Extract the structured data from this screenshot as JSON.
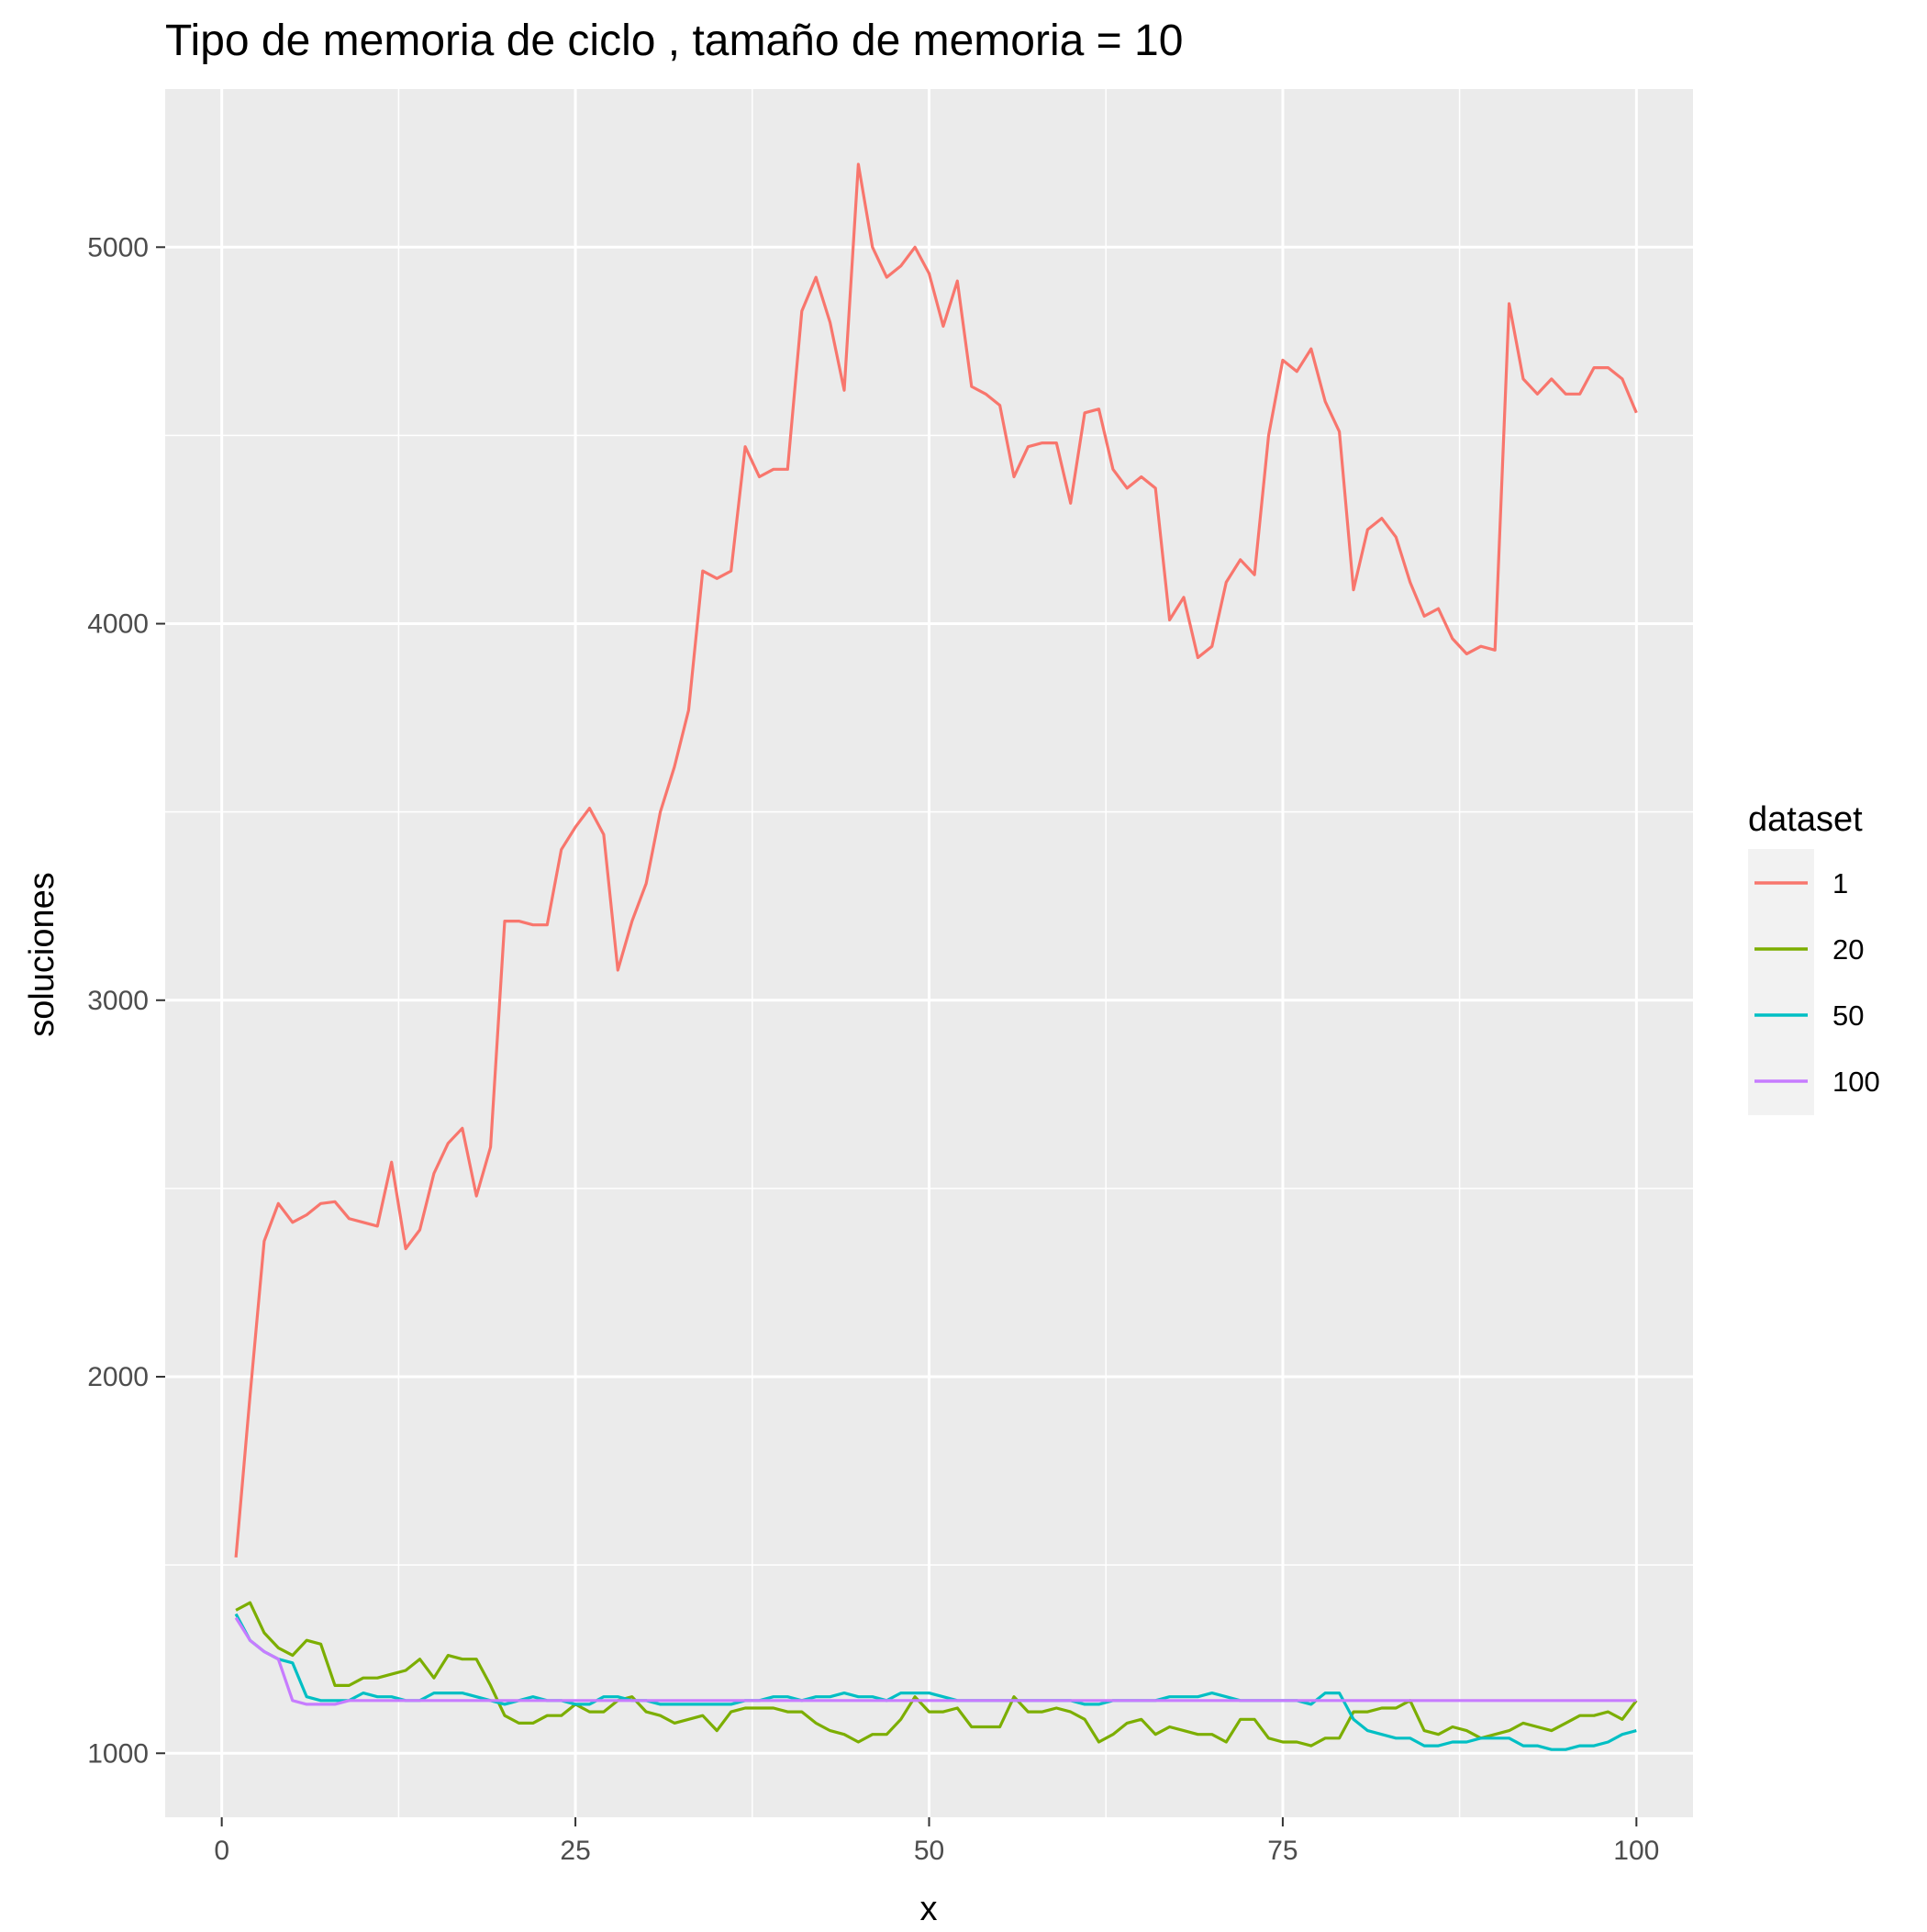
{
  "chart_data": {
    "type": "line",
    "title": "Tipo de memoria de ciclo , tamaño de memoria = 10",
    "xlabel": "x",
    "ylabel": "soluciones",
    "xlim": [
      -4,
      104
    ],
    "ylim": [
      830,
      5420
    ],
    "x_ticks": [
      0,
      25,
      50,
      75,
      100
    ],
    "y_ticks": [
      1000,
      2000,
      3000,
      4000,
      5000
    ],
    "grid": true,
    "legend": {
      "title": "dataset",
      "position": "right"
    },
    "x": [
      1,
      2,
      3,
      4,
      5,
      6,
      7,
      8,
      9,
      10,
      11,
      12,
      13,
      14,
      15,
      16,
      17,
      18,
      19,
      20,
      21,
      22,
      23,
      24,
      25,
      26,
      27,
      28,
      29,
      30,
      31,
      32,
      33,
      34,
      35,
      36,
      37,
      38,
      39,
      40,
      41,
      42,
      43,
      44,
      45,
      46,
      47,
      48,
      49,
      50,
      51,
      52,
      53,
      54,
      55,
      56,
      57,
      58,
      59,
      60,
      61,
      62,
      63,
      64,
      65,
      66,
      67,
      68,
      69,
      70,
      71,
      72,
      73,
      74,
      75,
      76,
      77,
      78,
      79,
      80,
      81,
      82,
      83,
      84,
      85,
      86,
      87,
      88,
      89,
      90,
      91,
      92,
      93,
      94,
      95,
      96,
      97,
      98,
      99,
      100
    ],
    "series": [
      {
        "name": "1",
        "color": "#F8766D",
        "values": [
          1520,
          1950,
          2360,
          2460,
          2410,
          2430,
          2460,
          2465,
          2420,
          2410,
          2400,
          2570,
          2340,
          2390,
          2540,
          2620,
          2660,
          2480,
          2610,
          3210,
          3210,
          3200,
          3200,
          3400,
          3460,
          3510,
          3440,
          3080,
          3210,
          3310,
          3500,
          3620,
          3770,
          4140,
          4120,
          4140,
          4470,
          4390,
          4410,
          4410,
          4830,
          4920,
          4800,
          4620,
          5220,
          5000,
          4920,
          4950,
          5000,
          4930,
          4790,
          4910,
          4630,
          4610,
          4580,
          4390,
          4470,
          4480,
          4480,
          4320,
          4560,
          4570,
          4410,
          4360,
          4390,
          4360,
          4010,
          4070,
          3910,
          3940,
          4110,
          4170,
          4130,
          4500,
          4700,
          4670,
          4730,
          4590,
          4510,
          4090,
          4250,
          4280,
          4230,
          4110,
          4020,
          4040,
          3960,
          3920,
          3940,
          3930,
          4850,
          4650,
          4610,
          4650,
          4610,
          4610,
          4680,
          4680,
          4650,
          4560
        ]
      },
      {
        "name": "20",
        "color": "#7CAE00",
        "values": [
          1380,
          1400,
          1320,
          1280,
          1260,
          1300,
          1290,
          1180,
          1180,
          1200,
          1200,
          1210,
          1220,
          1250,
          1200,
          1260,
          1250,
          1250,
          1180,
          1100,
          1080,
          1080,
          1100,
          1100,
          1130,
          1110,
          1110,
          1140,
          1150,
          1110,
          1100,
          1080,
          1090,
          1100,
          1060,
          1110,
          1120,
          1120,
          1120,
          1110,
          1110,
          1080,
          1060,
          1050,
          1030,
          1050,
          1050,
          1090,
          1150,
          1110,
          1110,
          1120,
          1070,
          1070,
          1070,
          1150,
          1110,
          1110,
          1120,
          1110,
          1090,
          1030,
          1050,
          1080,
          1090,
          1050,
          1070,
          1060,
          1050,
          1050,
          1030,
          1090,
          1090,
          1040,
          1030,
          1030,
          1020,
          1040,
          1040,
          1110,
          1110,
          1120,
          1120,
          1140,
          1060,
          1050,
          1070,
          1060,
          1040,
          1050,
          1060,
          1080,
          1070,
          1060,
          1080,
          1100,
          1100,
          1110,
          1090,
          1140
        ]
      },
      {
        "name": "50",
        "color": "#00BFC4",
        "values": [
          1370,
          1300,
          1270,
          1250,
          1240,
          1150,
          1140,
          1140,
          1140,
          1160,
          1150,
          1150,
          1140,
          1140,
          1160,
          1160,
          1160,
          1150,
          1140,
          1130,
          1140,
          1150,
          1140,
          1140,
          1130,
          1130,
          1150,
          1150,
          1140,
          1140,
          1130,
          1130,
          1130,
          1130,
          1130,
          1130,
          1140,
          1140,
          1150,
          1150,
          1140,
          1150,
          1150,
          1160,
          1150,
          1150,
          1140,
          1160,
          1160,
          1160,
          1150,
          1140,
          1140,
          1140,
          1140,
          1140,
          1140,
          1140,
          1140,
          1140,
          1130,
          1130,
          1140,
          1140,
          1140,
          1140,
          1150,
          1150,
          1150,
          1160,
          1150,
          1140,
          1140,
          1140,
          1140,
          1140,
          1130,
          1160,
          1160,
          1090,
          1060,
          1050,
          1040,
          1040,
          1020,
          1020,
          1030,
          1030,
          1040,
          1040,
          1040,
          1020,
          1020,
          1010,
          1010,
          1020,
          1020,
          1030,
          1050,
          1060
        ]
      },
      {
        "name": "100",
        "color": "#C77CFF",
        "values": [
          1360,
          1300,
          1270,
          1250,
          1140,
          1130,
          1130,
          1130,
          1140,
          1140,
          1140,
          1140,
          1140,
          1140,
          1140,
          1140,
          1140,
          1140,
          1140,
          1140,
          1140,
          1140,
          1140,
          1140,
          1140,
          1140,
          1140,
          1140,
          1140,
          1140,
          1140,
          1140,
          1140,
          1140,
          1140,
          1140,
          1140,
          1140,
          1140,
          1140,
          1140,
          1140,
          1140,
          1140,
          1140,
          1140,
          1140,
          1140,
          1140,
          1140,
          1140,
          1140,
          1140,
          1140,
          1140,
          1140,
          1140,
          1140,
          1140,
          1140,
          1140,
          1140,
          1140,
          1140,
          1140,
          1140,
          1140,
          1140,
          1140,
          1140,
          1140,
          1140,
          1140,
          1140,
          1140,
          1140,
          1140,
          1140,
          1140,
          1140,
          1140,
          1140,
          1140,
          1140,
          1140,
          1140,
          1140,
          1140,
          1140,
          1140,
          1140,
          1140,
          1140,
          1140,
          1140,
          1140,
          1140,
          1140,
          1140,
          1140
        ]
      }
    ]
  }
}
